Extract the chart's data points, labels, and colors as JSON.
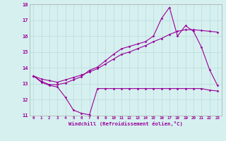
{
  "xlabel": "Windchill (Refroidissement éolien,°C)",
  "background_color": "#d6f0f0",
  "grid_color": "#b8dada",
  "line_color": "#990099",
  "xlim": [
    -0.5,
    23.5
  ],
  "ylim": [
    11,
    18
  ],
  "xticks": [
    0,
    1,
    2,
    3,
    4,
    5,
    6,
    7,
    8,
    9,
    10,
    11,
    12,
    13,
    14,
    15,
    16,
    17,
    18,
    19,
    20,
    21,
    22,
    23
  ],
  "yticks": [
    11,
    12,
    13,
    14,
    15,
    16,
    17,
    18
  ],
  "hours": [
    0,
    1,
    2,
    3,
    4,
    5,
    6,
    7,
    8,
    9,
    10,
    11,
    12,
    13,
    14,
    15,
    16,
    17,
    18,
    19,
    20,
    21,
    22,
    23
  ],
  "line1": [
    13.5,
    13.1,
    12.9,
    12.8,
    12.15,
    11.35,
    11.15,
    11.05,
    12.7,
    12.7,
    12.7,
    12.7,
    12.7,
    12.7,
    12.7,
    12.7,
    12.7,
    12.7,
    12.7,
    12.7,
    12.7,
    12.7,
    12.6,
    12.55
  ],
  "line2": [
    13.5,
    13.15,
    12.95,
    12.95,
    13.05,
    13.25,
    13.45,
    13.85,
    14.05,
    14.45,
    14.85,
    15.2,
    15.35,
    15.5,
    15.65,
    16.0,
    17.1,
    17.8,
    16.0,
    16.65,
    16.3,
    15.3,
    13.9,
    12.9
  ],
  "line3": [
    13.5,
    13.3,
    13.2,
    13.1,
    13.25,
    13.4,
    13.55,
    13.75,
    13.95,
    14.25,
    14.55,
    14.85,
    15.0,
    15.2,
    15.4,
    15.65,
    15.85,
    16.1,
    16.3,
    16.4,
    16.4,
    16.35,
    16.3,
    16.25
  ]
}
